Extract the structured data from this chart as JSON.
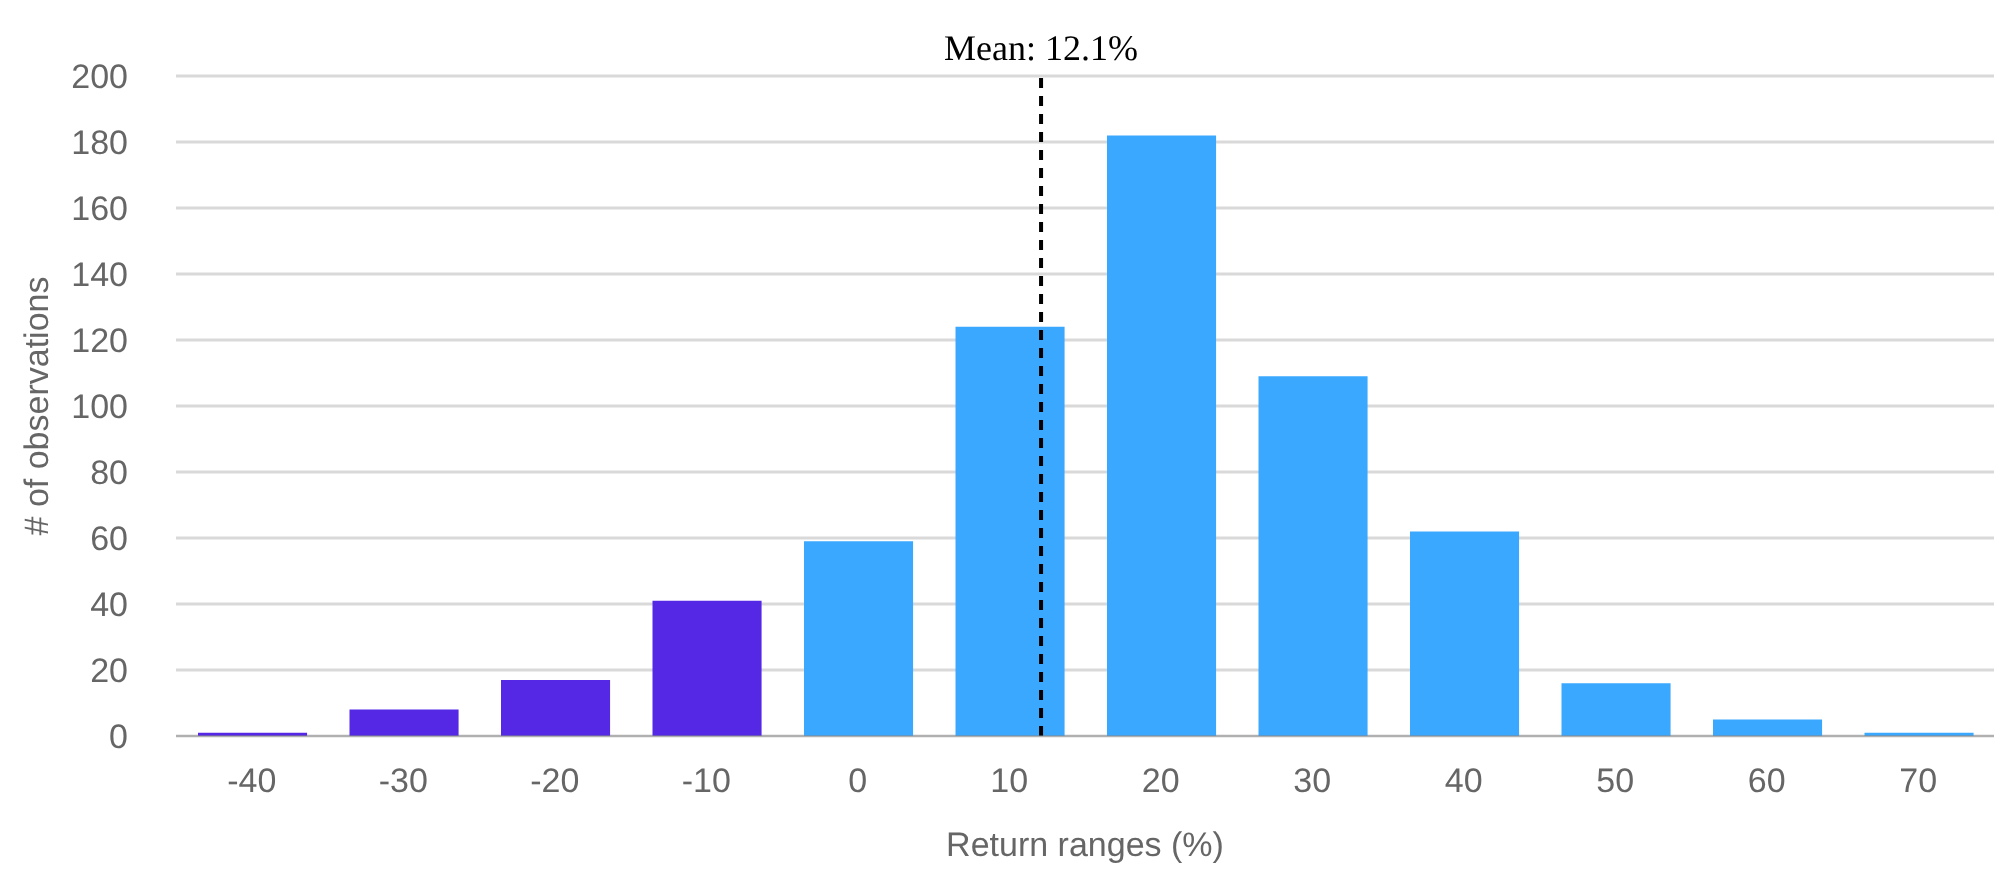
{
  "chart_data": {
    "type": "bar",
    "xlabel": "Return ranges (%)",
    "ylabel": "# of observations",
    "x": [
      -40,
      -30,
      -20,
      -10,
      0,
      10,
      20,
      30,
      40,
      50,
      60,
      70
    ],
    "values": [
      1,
      8,
      17,
      41,
      59,
      124,
      182,
      109,
      62,
      16,
      5,
      1
    ],
    "colors": [
      "#5528e6",
      "#5528e6",
      "#5528e6",
      "#5528e6",
      "#3aa8ff",
      "#3aa8ff",
      "#3aa8ff",
      "#3aa8ff",
      "#3aa8ff",
      "#3aa8ff",
      "#3aa8ff",
      "#3aa8ff"
    ],
    "xlim": [
      -45,
      75
    ],
    "xticks": [
      -40,
      -30,
      -20,
      -10,
      0,
      10,
      20,
      30,
      40,
      50,
      60,
      70
    ],
    "ylim": [
      0,
      200
    ],
    "yticks": [
      0,
      20,
      40,
      60,
      80,
      100,
      120,
      140,
      160,
      180,
      200
    ],
    "grid": "y",
    "ref_lines": [
      {
        "axis": "x",
        "value": 12.1,
        "label": "Mean: 12.1%",
        "color": "#000000",
        "line_style": "dashed"
      }
    ]
  }
}
